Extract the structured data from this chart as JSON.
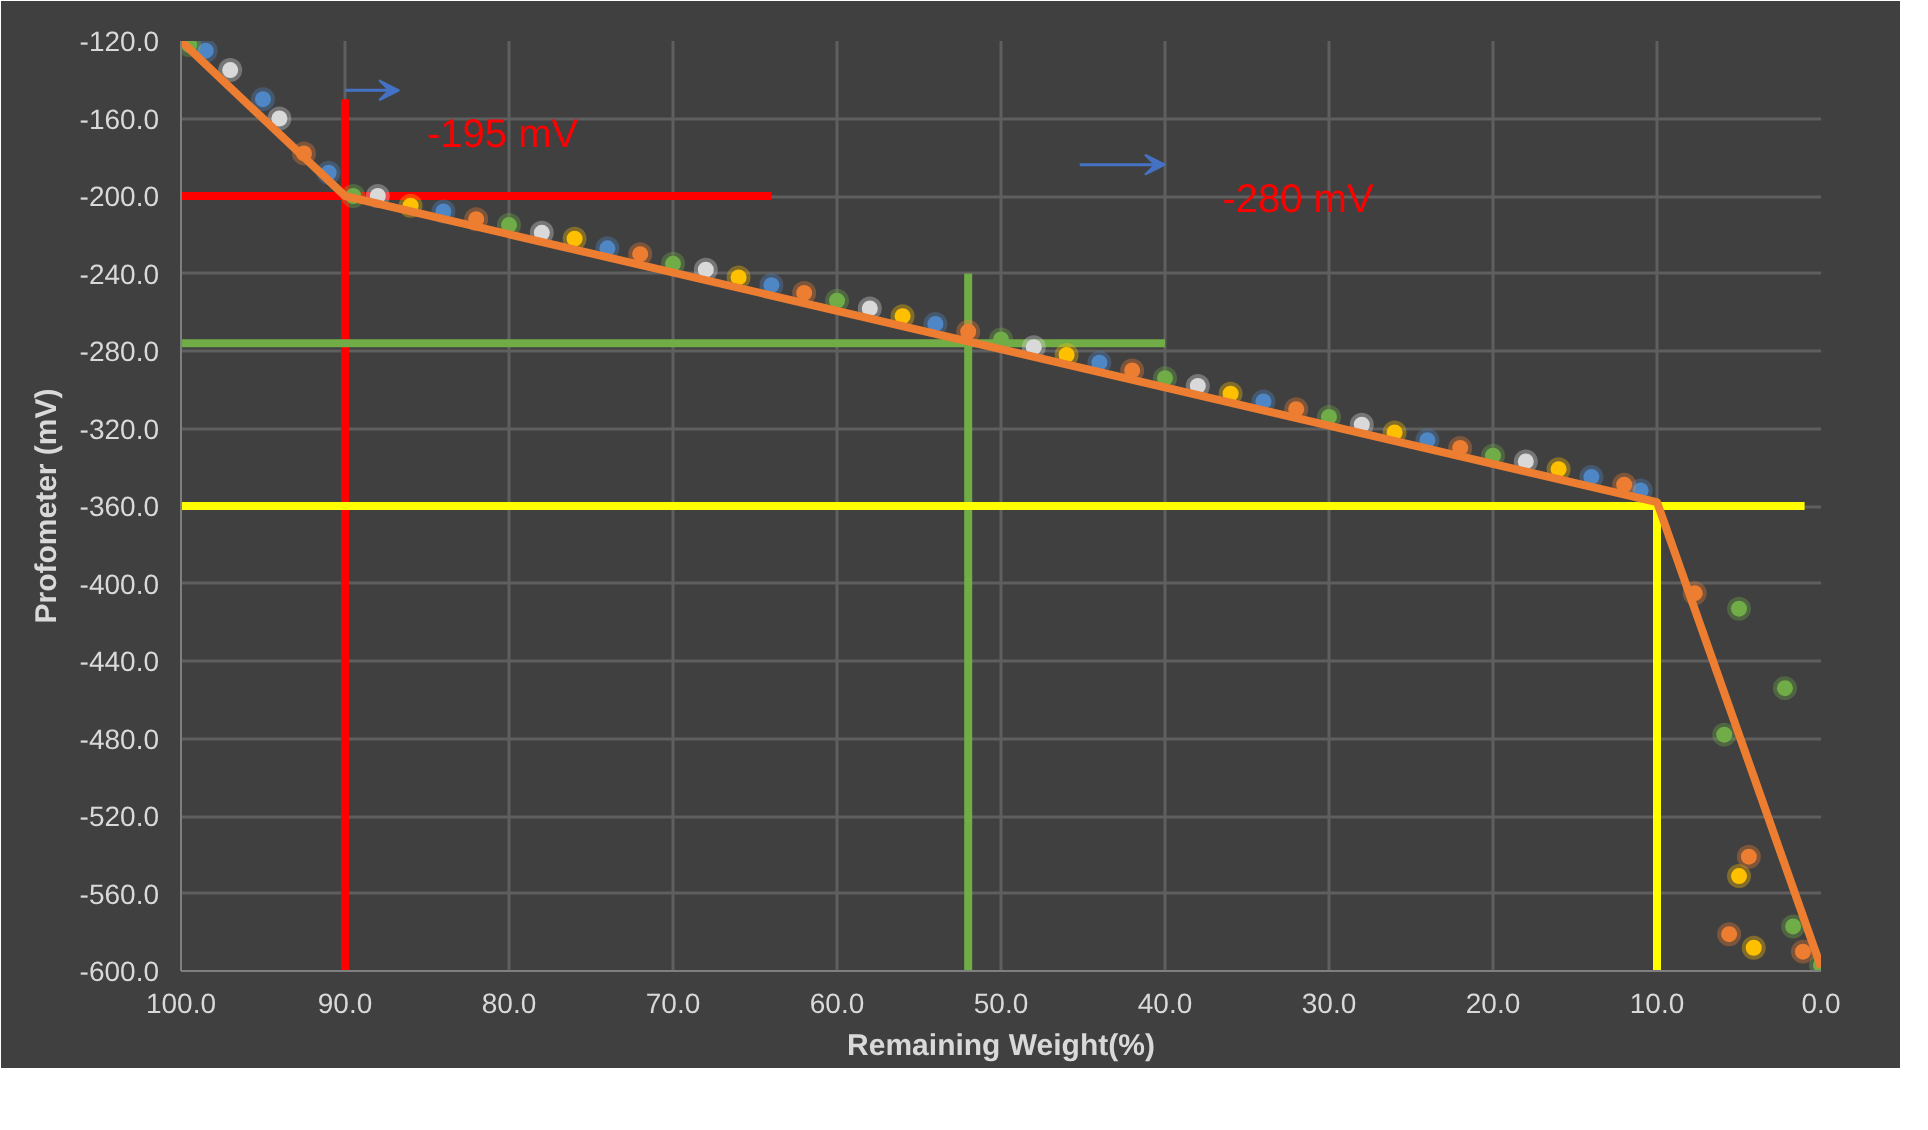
{
  "chart_data": {
    "type": "scatter",
    "xlabel": "Remaining Weight(%)",
    "ylabel": "Profometer (mV)",
    "xlim": [
      100,
      0
    ],
    "ylim": [
      -600,
      -120
    ],
    "xticks": [
      {
        "value": 100,
        "label": "100.0"
      },
      {
        "value": 90,
        "label": "90.0"
      },
      {
        "value": 80,
        "label": "80.0"
      },
      {
        "value": 70,
        "label": "70.0"
      },
      {
        "value": 60,
        "label": "60.0"
      },
      {
        "value": 50,
        "label": "50.0"
      },
      {
        "value": 40,
        "label": "40.0"
      },
      {
        "value": 30,
        "label": "30.0"
      },
      {
        "value": 20,
        "label": "20.0"
      },
      {
        "value": 10,
        "label": "10.0"
      },
      {
        "value": 0,
        "label": "0.0"
      }
    ],
    "yticks": [
      {
        "value": -120,
        "label": "-120.0"
      },
      {
        "value": -160,
        "label": "-160.0"
      },
      {
        "value": -200,
        "label": "-200.0"
      },
      {
        "value": -240,
        "label": "-240.0"
      },
      {
        "value": -280,
        "label": "-280.0"
      },
      {
        "value": -320,
        "label": "-320.0"
      },
      {
        "value": -360,
        "label": "-360.0"
      },
      {
        "value": -400,
        "label": "-400.0"
      },
      {
        "value": -440,
        "label": "-440.0"
      },
      {
        "value": -480,
        "label": "-480.0"
      },
      {
        "value": -520,
        "label": "-520.0"
      },
      {
        "value": -560,
        "label": "-560.0"
      },
      {
        "value": -600,
        "label": "-600.0"
      }
    ],
    "grid": true,
    "marker": "circle",
    "series": [
      {
        "color": "#d9d9d9",
        "x": [
          97,
          94,
          88,
          78,
          68,
          58,
          48,
          38,
          28,
          18
        ],
        "values": [
          -135,
          -160,
          -200,
          -219,
          -238,
          -258,
          -278,
          -298,
          -318,
          -337
        ]
      },
      {
        "color": "#ffc000",
        "x": [
          86,
          76,
          66,
          56,
          46,
          36,
          26,
          16,
          5,
          4.1
        ],
        "values": [
          -205,
          -222,
          -242,
          -262,
          -282,
          -302,
          -322,
          -341,
          -551,
          -588
        ]
      },
      {
        "color": "#4f86c6",
        "x": [
          98.5,
          95,
          91,
          84,
          74,
          64,
          54,
          44,
          34,
          24,
          14,
          11
        ],
        "values": [
          -125,
          -150,
          -188,
          -208,
          -227,
          -246,
          -266,
          -286,
          -306,
          -326,
          -345,
          -352
        ]
      },
      {
        "color": "#ed7d31",
        "x": [
          92.5,
          82,
          72,
          62,
          52,
          42,
          32,
          22,
          12,
          7.7,
          4.4,
          5.6,
          1.1
        ],
        "values": [
          -178,
          -212,
          -230,
          -250,
          -270,
          -290,
          -310,
          -330,
          -349,
          -405,
          -541,
          -581,
          -590
        ]
      },
      {
        "color": "#70ad47",
        "x": [
          99.5,
          89.5,
          80,
          70,
          60,
          50,
          40,
          30,
          20,
          5,
          2.2,
          5.9,
          1.7,
          0
        ],
        "values": [
          -122,
          -200,
          -215,
          -235,
          -254,
          -274,
          -294,
          -314,
          -334,
          -413,
          -454,
          -478,
          -577,
          -597
        ]
      },
      {
        "type": "line",
        "color": "#ed7d31",
        "marker": "none",
        "x": [
          100,
          90,
          10,
          0
        ],
        "values": [
          -120,
          -200,
          -358,
          -598
        ]
      }
    ],
    "ref_lines": [
      {
        "axis": "x",
        "value": 90,
        "color": "#ff0000"
      },
      {
        "axis": "y",
        "value": -200,
        "color": "#ff0000"
      },
      {
        "axis": "y",
        "value": -276,
        "color": "#70ad47"
      },
      {
        "axis": "x",
        "value": 52,
        "color": "#70ad47"
      },
      {
        "axis": "y",
        "value": -360,
        "color": "#ffff00"
      },
      {
        "axis": "x",
        "value": 10,
        "color": "#ffff00"
      }
    ],
    "annotations": [
      "-195 mV",
      "-280 mV"
    ]
  }
}
